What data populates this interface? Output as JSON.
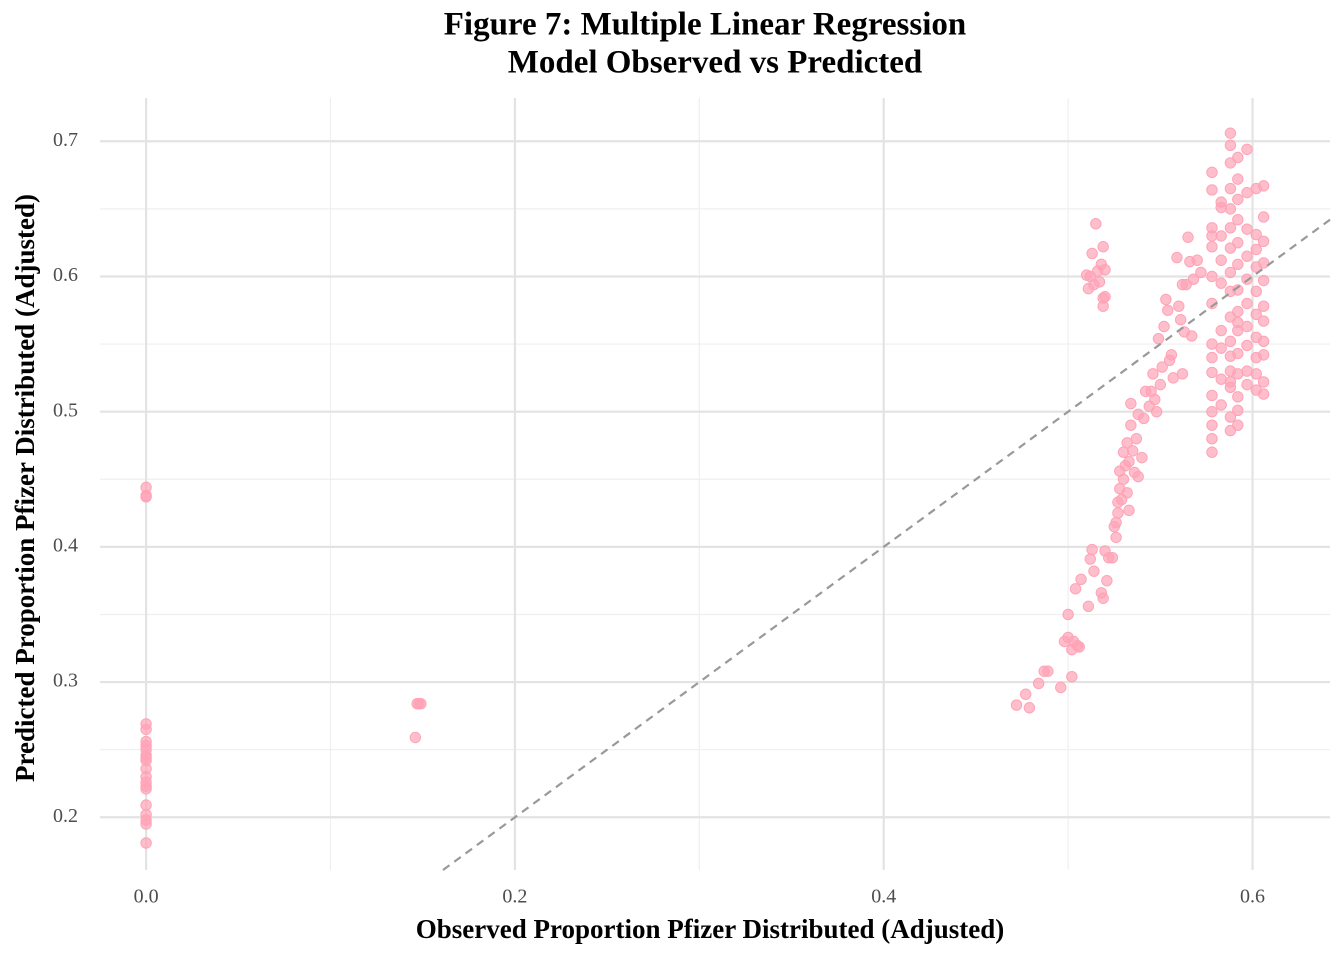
{
  "chart_data": {
    "type": "scatter",
    "title": [
      "Figure 7: Multiple Linear Regression",
      "Model Observed vs Predicted"
    ],
    "x_label": "Observed Proportion Pfizer Distributed (Adjusted)",
    "y_label": "Predicted Proportion Pfizer Distributed (Adjusted)",
    "xlim": [
      -0.025,
      0.642
    ],
    "ylim": [
      0.161,
      0.732
    ],
    "xticks": [
      {
        "value": 0,
        "label": "0.0"
      },
      0.2,
      0.4,
      0.6
    ],
    "yticks": [
      0.2,
      0.3,
      0.4,
      0.5,
      0.6,
      0.7
    ],
    "x_minor_ticks": [
      0.1,
      0.3,
      0.5
    ],
    "y_minor_ticks": [
      0.25,
      0.35,
      0.45,
      0.55,
      0.65
    ],
    "grid": true,
    "identity_line": true,
    "color": "#ffa3b6",
    "x": [
      0,
      0,
      0,
      0,
      0,
      0,
      0,
      0,
      0,
      0,
      0,
      0,
      0,
      0,
      0,
      0,
      0,
      0,
      0,
      0,
      0,
      0.147,
      0.148,
      0.149,
      0.146,
      0.472,
      0.477,
      0.479,
      0.484,
      0.487,
      0.489,
      0.496,
      0.498,
      0.5,
      0.5,
      0.502,
      0.502,
      0.503,
      0.504,
      0.505,
      0.507,
      0.506,
      0.511,
      0.512,
      0.513,
      0.514,
      0.518,
      0.519,
      0.52,
      0.522,
      0.521,
      0.524,
      0.525,
      0.526,
      0.526,
      0.527,
      0.527,
      0.528,
      0.528,
      0.529,
      0.53,
      0.53,
      0.531,
      0.532,
      0.532,
      0.533,
      0.533,
      0.534,
      0.534,
      0.535,
      0.536,
      0.537,
      0.538,
      0.538,
      0.54,
      0.541,
      0.542,
      0.544,
      0.545,
      0.546,
      0.547,
      0.548,
      0.549,
      0.55,
      0.551,
      0.552,
      0.553,
      0.554,
      0.555,
      0.556,
      0.557,
      0.559,
      0.56,
      0.561,
      0.562,
      0.562,
      0.563,
      0.564,
      0.565,
      0.566,
      0.567,
      0.568,
      0.57,
      0.572,
      0.51,
      0.511,
      0.512,
      0.513,
      0.514,
      0.515,
      0.516,
      0.517,
      0.518,
      0.519,
      0.519,
      0.52,
      0.52,
      0.519,
      0.578,
      0.578,
      0.578,
      0.578,
      0.578,
      0.578,
      0.578,
      0.578,
      0.578,
      0.578,
      0.578,
      0.578,
      0.578,
      0.578,
      0.578,
      0.583,
      0.583,
      0.583,
      0.583,
      0.583,
      0.583,
      0.583,
      0.583,
      0.583,
      0.588,
      0.588,
      0.588,
      0.588,
      0.588,
      0.588,
      0.588,
      0.588,
      0.588,
      0.588,
      0.588,
      0.588,
      0.588,
      0.588,
      0.588,
      0.588,
      0.588,
      0.592,
      0.592,
      0.592,
      0.592,
      0.592,
      0.592,
      0.592,
      0.592,
      0.592,
      0.592,
      0.592,
      0.592,
      0.592,
      0.592,
      0.592,
      0.597,
      0.597,
      0.597,
      0.597,
      0.597,
      0.597,
      0.597,
      0.597,
      0.597,
      0.597,
      0.602,
      0.602,
      0.602,
      0.602,
      0.602,
      0.602,
      0.602,
      0.602,
      0.602,
      0.602,
      0.606,
      0.606,
      0.606,
      0.606,
      0.606,
      0.606,
      0.606,
      0.606,
      0.606,
      0.606,
      0.606
    ],
    "values": [
      0.444,
      0.438,
      0.437,
      0.269,
      0.265,
      0.256,
      0.253,
      0.25,
      0.246,
      0.244,
      0.242,
      0.236,
      0.23,
      0.226,
      0.223,
      0.221,
      0.209,
      0.202,
      0.198,
      0.195,
      0.181,
      0.284,
      0.284,
      0.284,
      0.259,
      0.283,
      0.291,
      0.281,
      0.299,
      0.308,
      0.308,
      0.296,
      0.33,
      0.333,
      0.35,
      0.304,
      0.324,
      0.33,
      0.369,
      0.327,
      0.376,
      0.326,
      0.356,
      0.391,
      0.398,
      0.382,
      0.366,
      0.362,
      0.397,
      0.392,
      0.375,
      0.392,
      0.415,
      0.418,
      0.407,
      0.425,
      0.433,
      0.443,
      0.456,
      0.435,
      0.47,
      0.45,
      0.46,
      0.44,
      0.477,
      0.427,
      0.463,
      0.49,
      0.506,
      0.471,
      0.455,
      0.48,
      0.498,
      0.452,
      0.466,
      0.495,
      0.515,
      0.504,
      0.515,
      0.528,
      0.509,
      0.5,
      0.554,
      0.52,
      0.533,
      0.563,
      0.583,
      0.575,
      0.538,
      0.542,
      0.525,
      0.614,
      0.578,
      0.568,
      0.528,
      0.594,
      0.559,
      0.594,
      0.629,
      0.611,
      0.556,
      0.598,
      0.612,
      0.603,
      0.601,
      0.591,
      0.6,
      0.617,
      0.594,
      0.639,
      0.604,
      0.596,
      0.609,
      0.622,
      0.578,
      0.585,
      0.605,
      0.584,
      0.664,
      0.636,
      0.622,
      0.58,
      0.55,
      0.529,
      0.512,
      0.49,
      0.47,
      0.48,
      0.5,
      0.54,
      0.6,
      0.63,
      0.677,
      0.655,
      0.63,
      0.612,
      0.595,
      0.56,
      0.547,
      0.524,
      0.505,
      0.651,
      0.706,
      0.697,
      0.684,
      0.665,
      0.65,
      0.636,
      0.621,
      0.603,
      0.589,
      0.57,
      0.552,
      0.53,
      0.518,
      0.496,
      0.486,
      0.541,
      0.522,
      0.688,
      0.672,
      0.657,
      0.642,
      0.625,
      0.609,
      0.59,
      0.574,
      0.56,
      0.543,
      0.528,
      0.511,
      0.501,
      0.49,
      0.566,
      0.694,
      0.662,
      0.635,
      0.615,
      0.598,
      0.58,
      0.563,
      0.549,
      0.53,
      0.52,
      0.665,
      0.631,
      0.62,
      0.607,
      0.589,
      0.572,
      0.555,
      0.54,
      0.528,
      0.516,
      0.667,
      0.644,
      0.626,
      0.61,
      0.597,
      0.578,
      0.567,
      0.552,
      0.542,
      0.522,
      0.513
    ]
  }
}
